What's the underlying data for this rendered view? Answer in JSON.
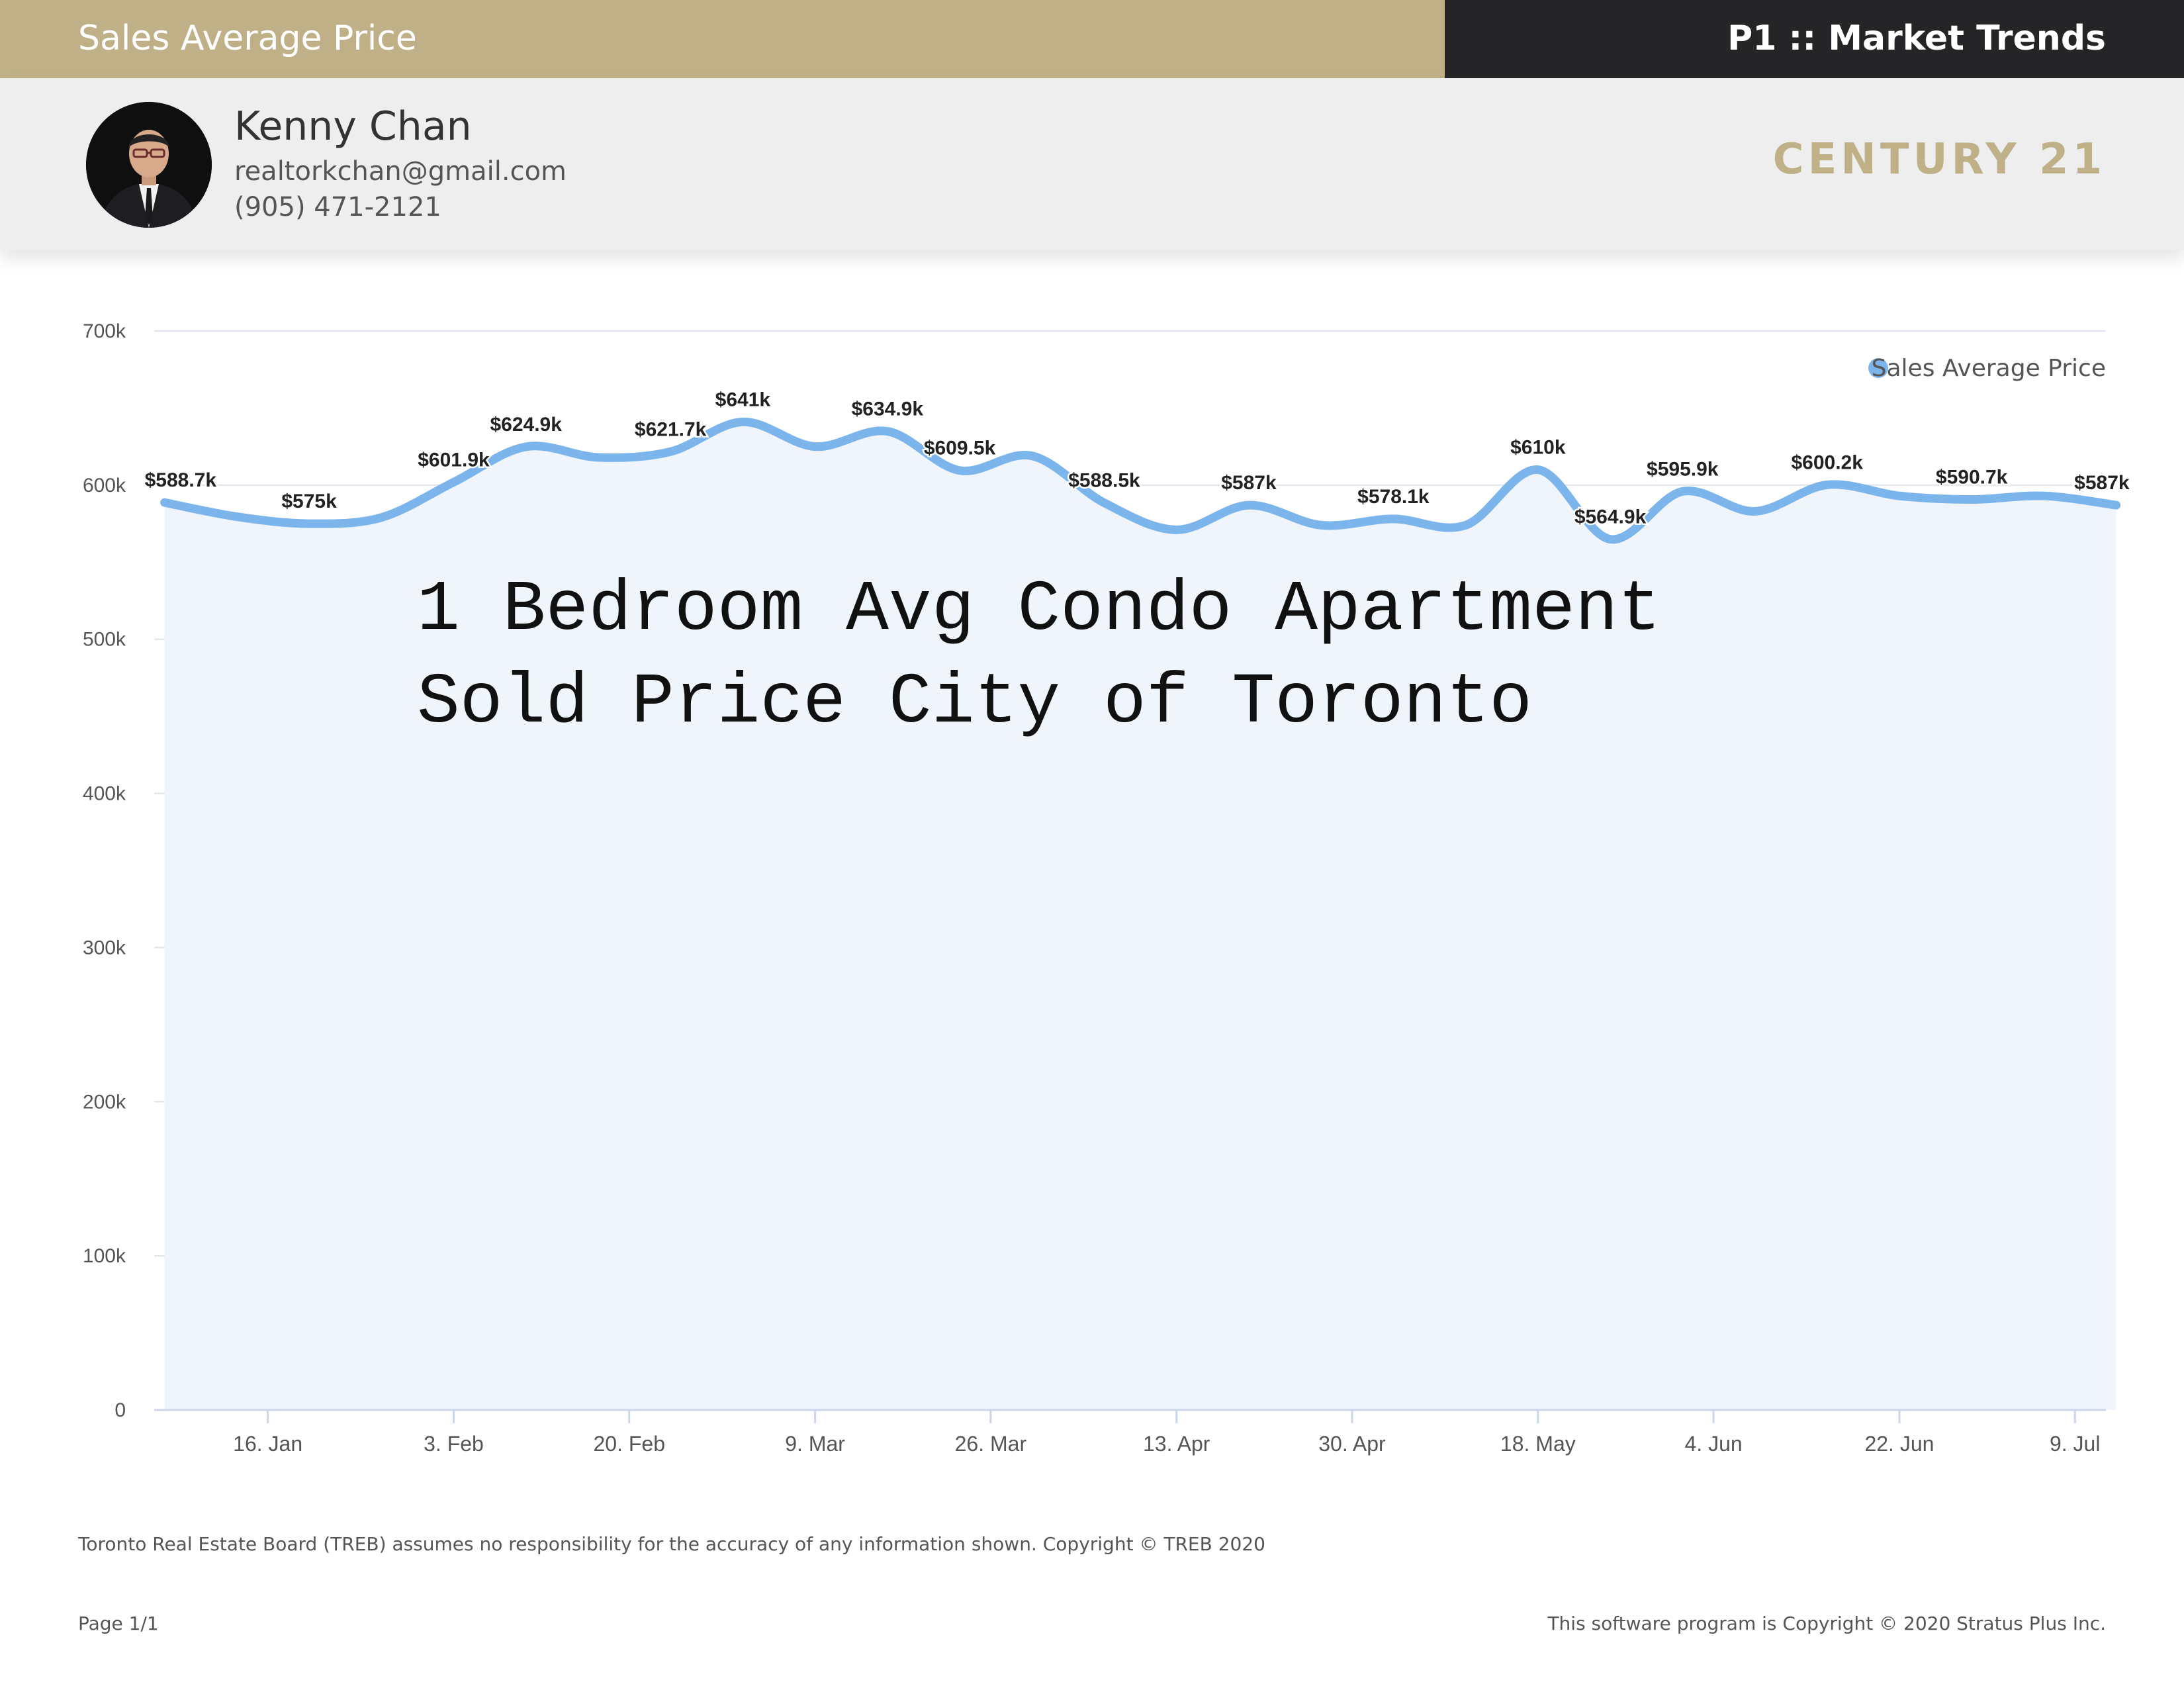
{
  "header": {
    "left_title": "Sales Average Price",
    "right_title": "P1 :: Market Trends"
  },
  "agent": {
    "name": "Kenny Chan",
    "email": "realtorkchan@gmail.com",
    "phone": "(905) 471-2121",
    "brand": "CENTURY 21",
    "avatar_icon": "portrait-photo"
  },
  "colors": {
    "header_gold": "#bfb087",
    "header_dark": "#252527",
    "series_line": "#7cb5ec",
    "area_fill": "#f0f5fc",
    "grid": "#e3e6ee"
  },
  "chart_data": {
    "type": "area",
    "title": "",
    "overlay_text": [
      "1 Bedroom Avg Condo Apartment",
      "Sold Price City of Toronto"
    ],
    "xlabel": "",
    "ylabel": "",
    "ylim": [
      0,
      700000
    ],
    "yticks": [
      0,
      100000,
      200000,
      300000,
      400000,
      500000,
      600000,
      700000
    ],
    "ytick_labels": [
      "0",
      "100k",
      "200k",
      "300k",
      "400k",
      "500k",
      "600k",
      "700k"
    ],
    "x_range": [
      "2020-01-05",
      "2020-07-12"
    ],
    "xticks": [
      "2020-01-16",
      "2020-02-03",
      "2020-02-20",
      "2020-03-09",
      "2020-03-26",
      "2020-04-13",
      "2020-04-30",
      "2020-05-18",
      "2020-06-04",
      "2020-06-22",
      "2020-07-09"
    ],
    "xtick_labels": [
      "16. Jan",
      "3. Feb",
      "20. Feb",
      "9. Mar",
      "26. Mar",
      "13. Apr",
      "30. Apr",
      "18. May",
      "4. Jun",
      "22. Jun",
      "9. Jul"
    ],
    "grid": true,
    "legend": {
      "position": "top-right",
      "entries": [
        "Sales Average Price"
      ]
    },
    "series": [
      {
        "name": "Sales Average Price",
        "points": [
          {
            "x": "2020-01-06",
            "y": 588700,
            "label": "$588.7k"
          },
          {
            "x": "2020-01-13",
            "y": 579500,
            "label": ""
          },
          {
            "x": "2020-01-20",
            "y": 575000,
            "label": "$575k"
          },
          {
            "x": "2020-01-27",
            "y": 579000,
            "label": ""
          },
          {
            "x": "2020-02-03",
            "y": 601900,
            "label": "$601.9k"
          },
          {
            "x": "2020-02-10",
            "y": 624900,
            "label": "$624.9k"
          },
          {
            "x": "2020-02-17",
            "y": 618000,
            "label": ""
          },
          {
            "x": "2020-02-24",
            "y": 621700,
            "label": "$621.7k"
          },
          {
            "x": "2020-03-02",
            "y": 641000,
            "label": "$641k"
          },
          {
            "x": "2020-03-09",
            "y": 625000,
            "label": ""
          },
          {
            "x": "2020-03-16",
            "y": 634900,
            "label": "$634.9k"
          },
          {
            "x": "2020-03-23",
            "y": 609500,
            "label": "$609.5k"
          },
          {
            "x": "2020-03-30",
            "y": 619000,
            "label": ""
          },
          {
            "x": "2020-04-06",
            "y": 588500,
            "label": "$588.5k"
          },
          {
            "x": "2020-04-13",
            "y": 571000,
            "label": ""
          },
          {
            "x": "2020-04-20",
            "y": 587000,
            "label": "$587k"
          },
          {
            "x": "2020-04-27",
            "y": 574000,
            "label": ""
          },
          {
            "x": "2020-05-04",
            "y": 578100,
            "label": "$578.1k"
          },
          {
            "x": "2020-05-11",
            "y": 574000,
            "label": ""
          },
          {
            "x": "2020-05-18",
            "y": 610000,
            "label": "$610k"
          },
          {
            "x": "2020-05-25",
            "y": 564900,
            "label": "$564.9k"
          },
          {
            "x": "2020-06-01",
            "y": 595900,
            "label": "$595.9k"
          },
          {
            "x": "2020-06-08",
            "y": 583000,
            "label": ""
          },
          {
            "x": "2020-06-15",
            "y": 600200,
            "label": "$600.2k"
          },
          {
            "x": "2020-06-22",
            "y": 593000,
            "label": ""
          },
          {
            "x": "2020-06-29",
            "y": 590700,
            "label": "$590.7k"
          },
          {
            "x": "2020-07-06",
            "y": 593000,
            "label": ""
          },
          {
            "x": "2020-07-13",
            "y": 587000,
            "label": "$587k"
          }
        ]
      }
    ]
  },
  "footer": {
    "disclaimer": "Toronto Real Estate Board (TREB) assumes no responsibility for the accuracy of any information shown. Copyright © TREB 2020",
    "page": "Page 1/1",
    "copyright": "This software program is Copyright © 2020 Stratus Plus Inc."
  }
}
